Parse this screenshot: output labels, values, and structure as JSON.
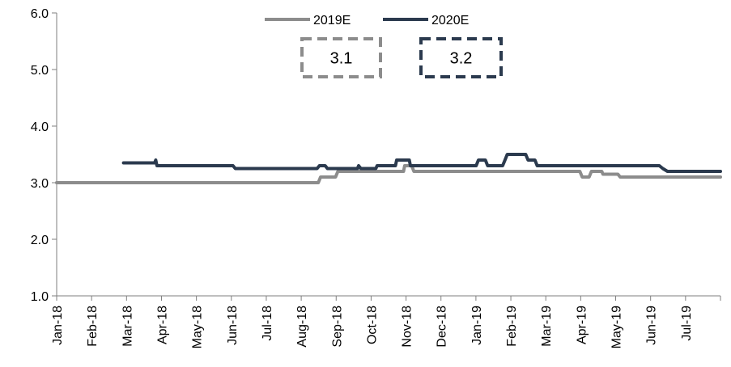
{
  "chart_data": {
    "type": "line",
    "title": "",
    "xlabel": "",
    "ylabel": "",
    "ylim": [
      1.0,
      6.0
    ],
    "y_ticks": [
      "1.0",
      "2.0",
      "3.0",
      "4.0",
      "5.0",
      "6.0"
    ],
    "x_range": [
      "2018-01-01",
      "2019-07-31"
    ],
    "x_tick_labels": [
      "Jan-18",
      "Feb-18",
      "Mar-18",
      "Apr-18",
      "May-18",
      "Jun-18",
      "Jul-18",
      "Aug-18",
      "Sep-18",
      "Oct-18",
      "Nov-18",
      "Dec-18",
      "Jan-19",
      "Feb-19",
      "Mar-19",
      "Apr-19",
      "May-19",
      "Jun-19",
      "Jul-19"
    ],
    "grid": false,
    "legend_position": "top-center",
    "series": [
      {
        "name": "2019E",
        "color": "#8c8c8c",
        "points": [
          [
            "2018-01-01",
            3.0
          ],
          [
            "2018-08-16",
            3.0
          ],
          [
            "2018-08-18",
            3.1
          ],
          [
            "2018-08-31",
            3.1
          ],
          [
            "2018-09-02",
            3.2
          ],
          [
            "2018-10-29",
            3.2
          ],
          [
            "2018-10-30",
            3.3
          ],
          [
            "2018-11-05",
            3.3
          ],
          [
            "2018-11-07",
            3.2
          ],
          [
            "2019-03-31",
            3.2
          ],
          [
            "2019-04-02",
            3.1
          ],
          [
            "2019-04-08",
            3.1
          ],
          [
            "2019-04-10",
            3.2
          ],
          [
            "2019-04-19",
            3.2
          ],
          [
            "2019-04-20",
            3.15
          ],
          [
            "2019-05-03",
            3.15
          ],
          [
            "2019-05-05",
            3.1
          ],
          [
            "2019-06-14",
            3.1
          ],
          [
            "2019-06-16",
            3.1
          ],
          [
            "2019-07-31",
            3.1
          ]
        ]
      },
      {
        "name": "2020E",
        "color": "#2b3a4e",
        "points": [
          [
            "2018-02-28",
            3.35
          ],
          [
            "2018-03-27",
            3.35
          ],
          [
            "2018-03-28",
            3.4
          ],
          [
            "2018-03-29",
            3.3
          ],
          [
            "2018-06-03",
            3.3
          ],
          [
            "2018-06-05",
            3.25
          ],
          [
            "2018-08-15",
            3.25
          ],
          [
            "2018-08-17",
            3.3
          ],
          [
            "2018-08-22",
            3.3
          ],
          [
            "2018-08-24",
            3.25
          ],
          [
            "2018-09-19",
            3.25
          ],
          [
            "2018-09-20",
            3.3
          ],
          [
            "2018-09-22",
            3.25
          ],
          [
            "2018-10-05",
            3.25
          ],
          [
            "2018-10-06",
            3.3
          ],
          [
            "2018-10-22",
            3.3
          ],
          [
            "2018-10-23",
            3.4
          ],
          [
            "2018-11-03",
            3.4
          ],
          [
            "2018-11-04",
            3.3
          ],
          [
            "2018-12-31",
            3.3
          ],
          [
            "2019-01-02",
            3.4
          ],
          [
            "2019-01-08",
            3.4
          ],
          [
            "2019-01-10",
            3.3
          ],
          [
            "2019-01-23",
            3.3
          ],
          [
            "2019-01-25",
            3.4
          ],
          [
            "2019-01-27",
            3.5
          ],
          [
            "2019-02-12",
            3.5
          ],
          [
            "2019-02-14",
            3.4
          ],
          [
            "2019-02-20",
            3.4
          ],
          [
            "2019-02-22",
            3.3
          ],
          [
            "2019-06-08",
            3.3
          ],
          [
            "2019-06-11",
            3.25
          ],
          [
            "2019-06-15",
            3.2
          ],
          [
            "2019-07-31",
            3.2
          ]
        ]
      }
    ],
    "annotations": [
      {
        "series": "2019E",
        "text": "3.1",
        "style": "dashed",
        "color": "#8c8c8c"
      },
      {
        "series": "2020E",
        "text": "3.2",
        "style": "dashed",
        "color": "#2b3a4e"
      }
    ]
  }
}
